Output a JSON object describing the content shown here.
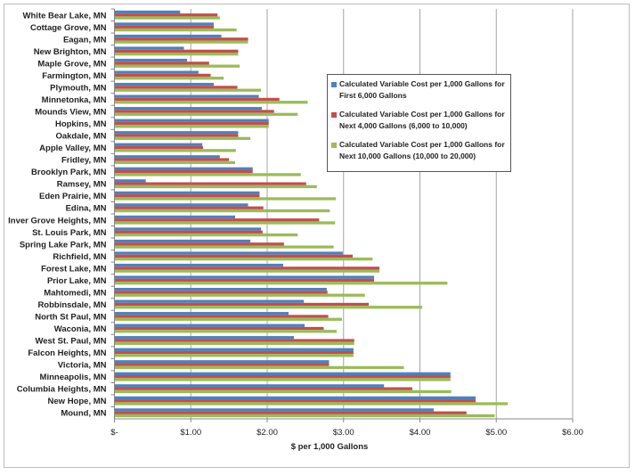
{
  "chart_data": {
    "type": "bar",
    "orientation": "horizontal",
    "xlabel": "$ per 1,000 Gallons",
    "xlim": [
      0,
      6
    ],
    "xticks": [
      "$-",
      "$1.00",
      "$2.00",
      "$3.00",
      "$4.00",
      "$5.00",
      "$6.00"
    ],
    "grid": true,
    "legend_position": "right",
    "categories": [
      "White Bear Lake, MN",
      "Cottage Grove, MN",
      "Eagan, MN",
      "New Brighton, MN",
      "Maple Grove, MN",
      "Farmington, MN",
      "Plymouth, MN",
      "Minnetonka, MN",
      "Mounds View, MN",
      "Hopkins, MN",
      "Oakdale, MN",
      "Apple Valley, MN",
      "Fridley, MN",
      "Brooklyn Park, MN",
      "Ramsey, MN",
      "Eden Prairie, MN",
      "Edina, MN",
      "Inver Grove Heights, MN",
      "St. Louis Park, MN",
      "Spring Lake Park, MN",
      "Richfield, MN",
      "Forest Lake, MN",
      "Prior Lake, MN",
      "Mahtomedi, MN",
      "Robbinsdale, MN",
      "North St Paul, MN",
      "Waconia, MN",
      "West St. Paul, MN",
      "Falcon Heights, MN",
      "Victoria, MN",
      "Minneapolis, MN",
      "Columbia Heights, MN",
      "New Hope, MN",
      "Mound, MN"
    ],
    "series": [
      {
        "name": "Calculated Variable Cost per 1,000 Gallons for First 6,000 Gallons",
        "color": "#4f81bd",
        "values": [
          0.86,
          1.3,
          1.4,
          0.91,
          0.95,
          1.1,
          1.3,
          1.89,
          1.93,
          2.02,
          1.62,
          1.15,
          1.38,
          1.81,
          0.41,
          1.9,
          1.75,
          1.58,
          1.92,
          1.78,
          2.99,
          2.21,
          3.4,
          2.78,
          2.48,
          2.28,
          2.49,
          2.35,
          3.13,
          2.81,
          4.4,
          3.53,
          4.73,
          4.18
        ]
      },
      {
        "name": "Calculated Variable Cost per 1,000 Gallons for Next 4,000 Gallons (6,000 to 10,000)",
        "color": "#c0504d",
        "values": [
          1.35,
          1.3,
          1.75,
          1.62,
          1.24,
          1.26,
          1.61,
          2.16,
          2.09,
          2.02,
          1.62,
          1.16,
          1.5,
          1.81,
          2.51,
          1.9,
          1.95,
          2.68,
          1.94,
          2.22,
          3.12,
          3.47,
          3.4,
          2.79,
          3.33,
          2.8,
          2.74,
          3.14,
          3.13,
          2.81,
          4.4,
          3.9,
          4.73,
          4.61
        ]
      },
      {
        "name": "Calculated Variable Cost per 1,000 Gallons for Next 10,000 Gallons (10,000 to 20,000)",
        "color": "#9bbb59",
        "values": [
          1.38,
          1.6,
          1.75,
          1.62,
          1.64,
          1.43,
          1.92,
          2.53,
          2.4,
          2.02,
          1.78,
          1.59,
          1.58,
          2.44,
          2.65,
          2.9,
          2.82,
          2.89,
          2.4,
          2.87,
          3.38,
          3.47,
          4.36,
          3.28,
          4.03,
          2.98,
          2.91,
          3.14,
          3.13,
          3.79,
          4.4,
          4.41,
          5.15,
          4.98
        ]
      }
    ]
  }
}
